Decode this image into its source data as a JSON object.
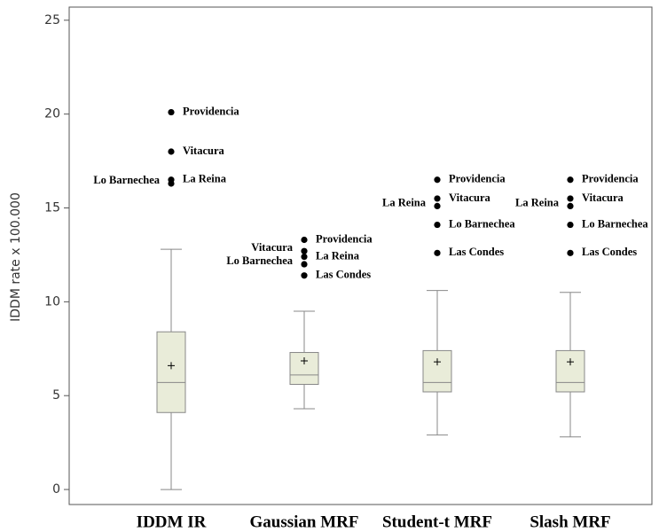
{
  "chart_data": {
    "type": "box",
    "y_label": "IDDM rate x 100.000",
    "categories": [
      "IDDM IR",
      "Gaussian MRF",
      "Student-t MRF",
      "Slash MRF"
    ],
    "ylim": [
      -0.8,
      25.7
    ],
    "yticks": [
      0,
      5,
      10,
      15,
      20,
      25
    ],
    "box_color": "#e9ecd9",
    "line_color": "#888888",
    "point_color": "#000000",
    "boxes": [
      {
        "whisker_low": 0,
        "q1": 4.1,
        "median": 5.7,
        "q3": 8.4,
        "whisker_high": 12.8,
        "mean": 6.6,
        "outliers": [
          {
            "name": "Providencia",
            "value": 20.1
          },
          {
            "name": "Vitacura",
            "value": 18.0
          },
          {
            "name": "La Reina",
            "value": 16.5
          },
          {
            "name": "Lo Barnechea",
            "value": 16.3
          }
        ]
      },
      {
        "whisker_low": 4.3,
        "q1": 5.6,
        "median": 6.1,
        "q3": 7.3,
        "whisker_high": 9.5,
        "mean": 6.85,
        "outliers": [
          {
            "name": "Providencia",
            "value": 13.3
          },
          {
            "name": "Vitacura",
            "value": 12.7
          },
          {
            "name": "La Reina",
            "value": 12.4
          },
          {
            "name": "Lo Barnechea",
            "value": 12.0
          },
          {
            "name": "Las Condes",
            "value": 11.4
          }
        ]
      },
      {
        "whisker_low": 2.9,
        "q1": 5.2,
        "median": 5.7,
        "q3": 7.4,
        "whisker_high": 10.6,
        "mean": 6.8,
        "outliers": [
          {
            "name": "Providencia",
            "value": 16.5
          },
          {
            "name": "Vitacura",
            "value": 15.5
          },
          {
            "name": "La Reina",
            "value": 15.1
          },
          {
            "name": "Lo Barnechea",
            "value": 14.1
          },
          {
            "name": "Las Condes",
            "value": 12.6
          }
        ]
      },
      {
        "whisker_low": 2.8,
        "q1": 5.2,
        "median": 5.7,
        "q3": 7.4,
        "whisker_high": 10.5,
        "mean": 6.8,
        "outliers": [
          {
            "name": "Providencia",
            "value": 16.5
          },
          {
            "name": "Vitacura",
            "value": 15.5
          },
          {
            "name": "La Reina",
            "value": 15.1
          },
          {
            "name": "Lo Barnechea",
            "value": 14.1
          },
          {
            "name": "Las Condes",
            "value": 12.6
          }
        ]
      }
    ]
  }
}
